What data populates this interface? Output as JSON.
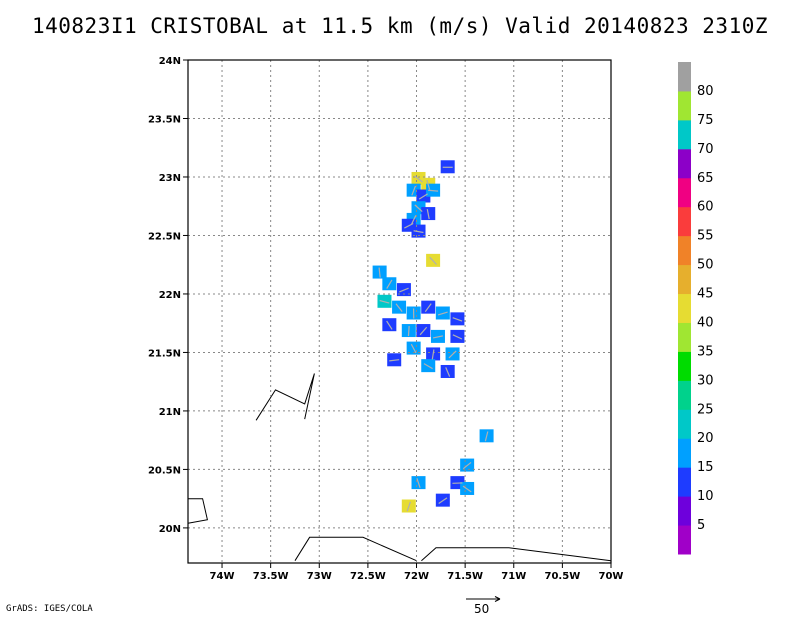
{
  "chart_data": {
    "type": "heatmap",
    "title": "140823I1 CRISTOBAL at 11.5 km (m/s) Valid 20140823 2310Z",
    "x_ticks": [
      "74W",
      "73.5W",
      "73W",
      "72.5W",
      "72W",
      "71.5W",
      "71W",
      "70.5W",
      "70W"
    ],
    "y_ticks": [
      "20N",
      "20.5N",
      "21N",
      "21.5N",
      "22N",
      "22.5N",
      "23N",
      "23.5N",
      "24N"
    ],
    "xlim": [
      -74.35,
      -70.0
    ],
    "ylim": [
      19.7,
      24.0
    ],
    "grid": true,
    "colorbar": {
      "labels": [
        "5",
        "10",
        "15",
        "20",
        "25",
        "30",
        "35",
        "40",
        "45",
        "50",
        "55",
        "60",
        "65",
        "70",
        "75",
        "80"
      ],
      "colors": [
        "#a000c8",
        "#6e00dc",
        "#1e3cff",
        "#00a0ff",
        "#00c8c8",
        "#00d28c",
        "#00dc00",
        "#a0e632",
        "#e6dc32",
        "#e6af2d",
        "#f08228",
        "#fa3c3c",
        "#f00082",
        "#8c00c8",
        "#00c8c8",
        "#a0e632",
        "#a0a0a0"
      ]
    },
    "reference_vector": {
      "label": "50",
      "units": "m/s"
    },
    "cells": [
      {
        "lon": -71.7,
        "lat": 23.1,
        "v": 2
      },
      {
        "lon": -72.0,
        "lat": 23.0,
        "v": 8
      },
      {
        "lon": -71.9,
        "lat": 22.95,
        "v": 8
      },
      {
        "lon": -72.05,
        "lat": 22.9,
        "v": 3
      },
      {
        "lon": -71.95,
        "lat": 22.85,
        "v": 2
      },
      {
        "lon": -71.85,
        "lat": 22.9,
        "v": 3
      },
      {
        "lon": -72.0,
        "lat": 22.75,
        "v": 3
      },
      {
        "lon": -71.9,
        "lat": 22.7,
        "v": 2
      },
      {
        "lon": -72.05,
        "lat": 22.65,
        "v": 3
      },
      {
        "lon": -72.1,
        "lat": 22.6,
        "v": 2
      },
      {
        "lon": -72.0,
        "lat": 22.55,
        "v": 2
      },
      {
        "lon": -71.85,
        "lat": 22.3,
        "v": 8
      },
      {
        "lon": -72.4,
        "lat": 22.2,
        "v": 3
      },
      {
        "lon": -72.3,
        "lat": 22.1,
        "v": 3
      },
      {
        "lon": -72.15,
        "lat": 22.05,
        "v": 2
      },
      {
        "lon": -72.35,
        "lat": 21.95,
        "v": 4
      },
      {
        "lon": -72.2,
        "lat": 21.9,
        "v": 3
      },
      {
        "lon": -72.05,
        "lat": 21.85,
        "v": 3
      },
      {
        "lon": -71.9,
        "lat": 21.9,
        "v": 2
      },
      {
        "lon": -71.75,
        "lat": 21.85,
        "v": 3
      },
      {
        "lon": -71.6,
        "lat": 21.8,
        "v": 2
      },
      {
        "lon": -72.3,
        "lat": 21.75,
        "v": 2
      },
      {
        "lon": -72.1,
        "lat": 21.7,
        "v": 3
      },
      {
        "lon": -71.95,
        "lat": 21.7,
        "v": 2
      },
      {
        "lon": -71.8,
        "lat": 21.65,
        "v": 3
      },
      {
        "lon": -71.6,
        "lat": 21.65,
        "v": 2
      },
      {
        "lon": -72.05,
        "lat": 21.55,
        "v": 3
      },
      {
        "lon": -71.85,
        "lat": 21.5,
        "v": 2
      },
      {
        "lon": -71.65,
        "lat": 21.5,
        "v": 3
      },
      {
        "lon": -72.25,
        "lat": 21.45,
        "v": 2
      },
      {
        "lon": -71.9,
        "lat": 21.4,
        "v": 3
      },
      {
        "lon": -71.7,
        "lat": 21.35,
        "v": 2
      },
      {
        "lon": -71.3,
        "lat": 20.8,
        "v": 3
      },
      {
        "lon": -71.5,
        "lat": 20.55,
        "v": 3
      },
      {
        "lon": -71.6,
        "lat": 20.4,
        "v": 2
      },
      {
        "lon": -71.5,
        "lat": 20.35,
        "v": 3
      },
      {
        "lon": -72.0,
        "lat": 20.4,
        "v": 3
      },
      {
        "lon": -72.1,
        "lat": 20.2,
        "v": 8
      },
      {
        "lon": -71.75,
        "lat": 20.25,
        "v": 2
      }
    ]
  }
}
